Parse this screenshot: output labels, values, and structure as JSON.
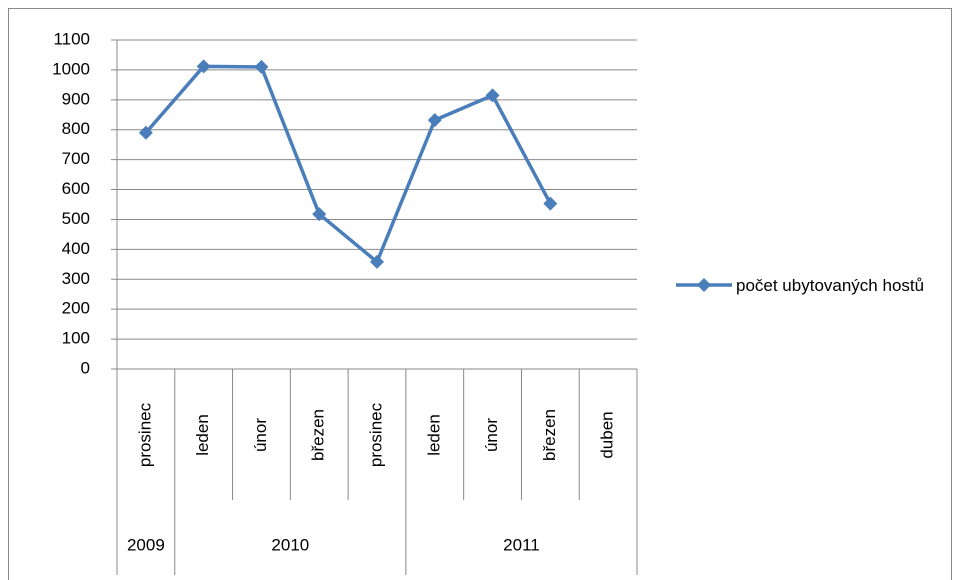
{
  "chart_data": {
    "type": "line",
    "categories": [
      "prosinec",
      "leden",
      "únor",
      "březen",
      "prosinec",
      "leden",
      "únor",
      "březen",
      "duben"
    ],
    "category_groups": [
      "2009",
      "2010",
      "2010",
      "2010",
      "2010",
      "2011",
      "2011",
      "2011",
      "2011"
    ],
    "series": [
      {
        "name": "počet ubytovaných hostů",
        "color": "#4a7ebb",
        "values": [
          790,
          1012,
          1010,
          518,
          358,
          832,
          915,
          553,
          null
        ]
      }
    ],
    "ylim": [
      0,
      1100
    ],
    "yticks": [
      0,
      100,
      200,
      300,
      400,
      500,
      600,
      700,
      800,
      900,
      1000,
      1100
    ],
    "grid": true,
    "legend": "right"
  }
}
